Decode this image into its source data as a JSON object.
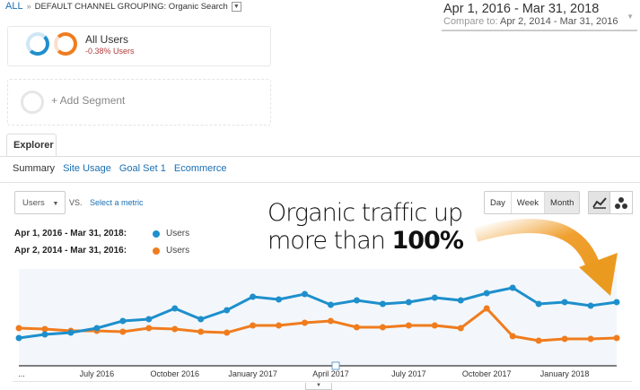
{
  "breadcrumb": {
    "root": "ALL",
    "separator": "»",
    "group": "DEFAULT CHANNEL GROUPING: Organic Search"
  },
  "date_range": {
    "main": "Apr 1, 2016 - Mar 31, 2018",
    "compare_label": "Compare to:",
    "compare": "Apr 2, 2014 - Mar 31, 2016"
  },
  "segments": [
    {
      "name": "All Users",
      "change": "-0.38% Users"
    },
    {
      "name": "+ Add Segment"
    }
  ],
  "tabs": [
    {
      "label": "Explorer"
    }
  ],
  "subtabs": [
    "Summary",
    "Site Usage",
    "Goal Set 1",
    "Ecommerce"
  ],
  "metric": {
    "selected": "Users",
    "vs": "VS.",
    "select_label": "Select a metric"
  },
  "legend": [
    {
      "range": "Apr 1, 2016 - Mar 31, 2018:",
      "metric": "Users",
      "color": "#1e8fcc"
    },
    {
      "range": "Apr 2, 2014 - Mar 31, 2016:",
      "metric": "Users",
      "color": "#f07c1e"
    }
  ],
  "granularity": {
    "options": [
      "Day",
      "Week",
      "Month"
    ],
    "selected": "Month"
  },
  "chart_types": [
    "line-chart-icon",
    "motion-chart-icon"
  ],
  "annotation": {
    "line1": "Organic traffic up",
    "line2a": "more than ",
    "line2b": "100%",
    "arrow_color": "#f0a030"
  },
  "chart_data": {
    "type": "line",
    "x_ticks": [
      "...",
      "July 2016",
      "October 2016",
      "January 2017",
      "April 2017",
      "July 2017",
      "October 2017",
      "January 2018"
    ],
    "grid": false,
    "series": [
      {
        "color": "#1e8fcc",
        "values": [
          31,
          35,
          37,
          42,
          50,
          52,
          64,
          52,
          62,
          77,
          74,
          80,
          68,
          73,
          69,
          71,
          76,
          73,
          81,
          87,
          69,
          71,
          67,
          71
        ]
      },
      {
        "color": "#f07c1e",
        "values": [
          42,
          41,
          39,
          39,
          38,
          42,
          41,
          38,
          37,
          45,
          45,
          48,
          50,
          43,
          43,
          45,
          45,
          42,
          64,
          33,
          28,
          30,
          30,
          31
        ]
      }
    ]
  }
}
